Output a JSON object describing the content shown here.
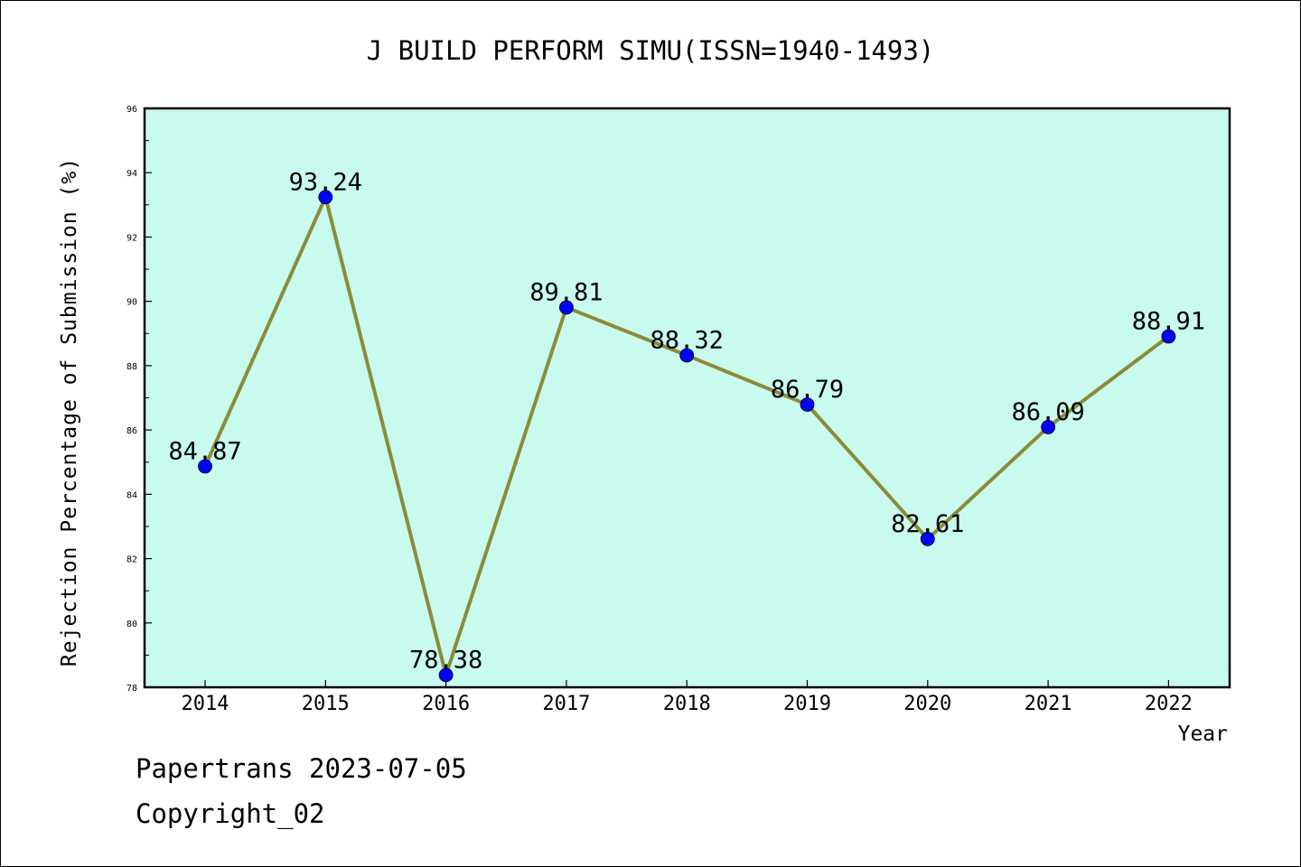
{
  "chart_data": {
    "type": "line",
    "title": "J BUILD PERFORM SIMU(ISSN=1940-1493)",
    "xlabel": "Year",
    "ylabel": "Rejection Percentage of Submission (%)",
    "categories": [
      "2014",
      "2015",
      "2016",
      "2017",
      "2018",
      "2019",
      "2020",
      "2021",
      "2022"
    ],
    "series": [
      {
        "values": [
          84.87,
          93.24,
          78.38,
          89.81,
          88.32,
          86.79,
          82.61,
          86.09,
          88.91
        ],
        "data_labels": [
          "84.87",
          "93.24",
          "78.38",
          "89.81",
          "88.32",
          "86.79",
          "82.61",
          "86.09",
          "88.91"
        ]
      }
    ],
    "ylim": [
      78,
      96
    ],
    "yticks": [
      "78",
      "80",
      "82",
      "84",
      "86",
      "88",
      "90",
      "92",
      "94",
      "96"
    ],
    "grid": false,
    "legend": "none",
    "colors": {
      "plot_background": "#c8fbee",
      "line": "#8b8b3a",
      "marker": "#0000ff",
      "axes": "#000000"
    }
  },
  "footer": {
    "line1": "Papertrans 2023-07-05",
    "line2": "Copyright_02"
  }
}
